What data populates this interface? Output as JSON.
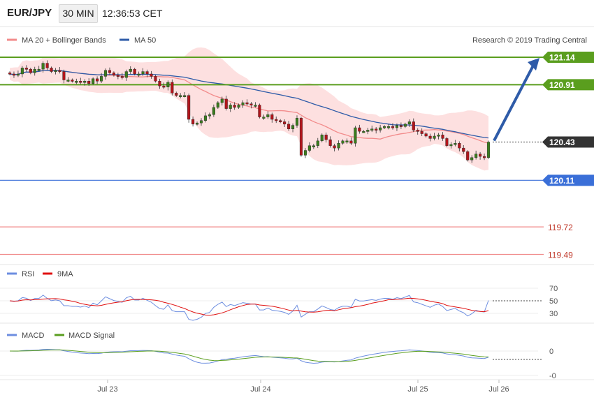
{
  "header": {
    "pair": "EUR/JPY",
    "timeframe": "30 MIN",
    "time": "12:36:53 CET"
  },
  "legend_main": [
    {
      "label": "MA 20 + Bollinger Bands",
      "color": "#f28b8b"
    },
    {
      "label": "MA 50",
      "color": "#2e5ba8"
    }
  ],
  "copyright": "Research © 2019 Trading Central",
  "levels": [
    {
      "label": "121.14",
      "value": 121.14,
      "color": "#5a9e1e",
      "style": "line"
    },
    {
      "label": "120.91",
      "value": 120.91,
      "color": "#5a9e1e",
      "style": "line"
    },
    {
      "label": "120.43",
      "value": 120.43,
      "color": "#333333",
      "style": "dotted"
    },
    {
      "label": "120.11",
      "value": 120.11,
      "color": "#3a6fd8",
      "style": "line"
    },
    {
      "label": "119.72",
      "value": 119.72,
      "color": "#f08a8a",
      "style": "line"
    },
    {
      "label": "119.49",
      "value": 119.49,
      "color": "#f08a8a",
      "style": "line"
    }
  ],
  "rsi_panel": {
    "legend": [
      {
        "label": "RSI",
        "color": "#6d8ee0"
      },
      {
        "label": "9MA",
        "color": "#e01010"
      }
    ],
    "ticks": [
      "70",
      "50",
      "30"
    ]
  },
  "macd_panel": {
    "legend": [
      {
        "label": "MACD",
        "color": "#6d8ee0"
      },
      {
        "label": "MACD Signal",
        "color": "#5a9e1e"
      }
    ],
    "ticks": [
      "0",
      "-0"
    ]
  },
  "x_labels": [
    "Jul 23",
    "Jul 24",
    "Jul 25",
    "Jul 26"
  ],
  "chart_data": {
    "type": "candlestick",
    "title": "EUR/JPY",
    "ylim": [
      119.4,
      121.25
    ],
    "arrow": {
      "from": 120.43,
      "to": 121.14
    },
    "close": [
      121.0,
      120.99,
      121.0,
      121.05,
      121.04,
      121.01,
      121.04,
      121.04,
      121.09,
      121.05,
      121.02,
      121.03,
      121.02,
      120.95,
      120.95,
      120.94,
      120.94,
      120.93,
      120.94,
      120.92,
      120.96,
      120.94,
      120.98,
      121.03,
      121.01,
      120.99,
      120.98,
      120.97,
      121.02,
      121.04,
      121.0,
      121.0,
      121.02,
      121.0,
      120.98,
      120.94,
      120.9,
      120.89,
      120.93,
      120.84,
      120.82,
      120.82,
      120.82,
      120.62,
      120.58,
      120.59,
      120.61,
      120.65,
      120.66,
      120.72,
      120.76,
      120.79,
      120.71,
      120.74,
      120.72,
      120.74,
      120.76,
      120.75,
      120.74,
      120.74,
      120.64,
      120.64,
      120.66,
      120.62,
      120.61,
      120.6,
      120.58,
      120.54,
      120.57,
      120.63,
      120.32,
      120.36,
      120.4,
      120.4,
      120.44,
      120.49,
      120.45,
      120.4,
      120.38,
      120.42,
      120.44,
      120.44,
      120.42,
      120.55,
      120.52,
      120.52,
      120.53,
      120.54,
      120.53,
      120.55,
      120.56,
      120.56,
      120.55,
      120.57,
      120.56,
      120.58,
      120.6,
      120.53,
      120.52,
      120.5,
      120.48,
      120.46,
      120.48,
      120.49,
      120.46,
      120.4,
      120.41,
      120.42,
      120.38,
      120.35,
      120.28,
      120.3,
      120.33,
      120.31,
      120.3,
      120.43
    ]
  }
}
